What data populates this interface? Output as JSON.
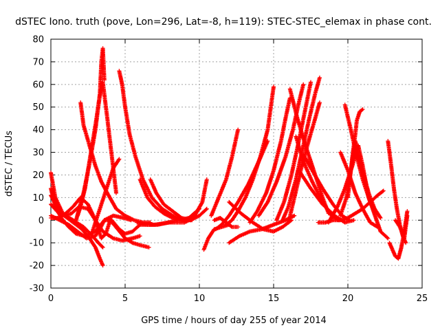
{
  "chart_data": {
    "type": "scatter",
    "title": "dSTEC Iono. truth (pove, Lon=296, Lat=-8, h=119): STEC-STEC_elemax in phase cont.",
    "xlabel": "GPS time / hours of day 255 of year 2014",
    "ylabel": "dSTEC  / TECUs",
    "xlim": [
      0,
      25
    ],
    "ylim": [
      -30,
      80
    ],
    "xticks": [
      0,
      5,
      10,
      15,
      20,
      25
    ],
    "yticks": [
      -30,
      -20,
      -10,
      0,
      10,
      20,
      30,
      40,
      50,
      60,
      70,
      80
    ],
    "grid": true,
    "marker": "+",
    "color": "#ff0000",
    "series": [
      {
        "x": [
          0.0,
          0.3,
          0.8,
          1.5,
          2.2,
          2.8,
          3.2,
          3.5
        ],
        "y": [
          21,
          10,
          3,
          0,
          -3,
          -7,
          -10,
          -12
        ]
      },
      {
        "x": [
          0.0,
          0.3,
          0.7,
          1.2,
          1.7,
          2.3,
          3.0,
          3.6,
          4.2,
          4.9,
          5.4
        ],
        "y": [
          14,
          6,
          1,
          -3,
          -6,
          -7,
          -5,
          0,
          2,
          1,
          0
        ]
      },
      {
        "x": [
          0.0,
          0.4,
          0.9,
          1.5,
          2.1,
          2.6,
          3.0,
          3.3,
          3.5
        ],
        "y": [
          11,
          6,
          2,
          -1,
          -4,
          -8,
          -12,
          -17,
          -20
        ]
      },
      {
        "x": [
          0.0,
          0.4,
          0.9,
          1.4,
          1.9,
          2.5,
          3.0,
          3.4,
          3.7,
          4.0,
          4.5,
          5.0,
          5.5,
          6.0,
          6.6
        ],
        "y": [
          7,
          4,
          2,
          3,
          6,
          5,
          0,
          -8,
          -6,
          0,
          -4,
          -8,
          -10,
          -11,
          -12
        ]
      },
      {
        "x": [
          0.0,
          0.5,
          1.0,
          1.5,
          2.0,
          2.5,
          3.0,
          3.5,
          4.2,
          4.8,
          5.5,
          6.0
        ],
        "y": [
          1,
          1,
          3,
          6,
          10,
          7,
          0,
          -5,
          -8,
          -9,
          -8,
          -7
        ]
      },
      {
        "x": [
          0.0,
          0.6,
          1.2,
          1.8,
          2.4,
          3.0,
          3.3,
          3.6,
          4.1,
          4.6,
          5.0,
          5.5,
          6.0
        ],
        "y": [
          2,
          0,
          -2,
          -5,
          -8,
          -7,
          -4,
          0,
          0,
          -4,
          -6,
          -5,
          -2
        ]
      },
      {
        "x": [
          1.7,
          1.9,
          2.2,
          2.6,
          3.0,
          3.3,
          3.4,
          3.5,
          3.6
        ],
        "y": [
          0,
          5,
          12,
          25,
          40,
          56,
          70,
          76,
          62
        ]
      },
      {
        "x": [
          1.8,
          2.0,
          2.3,
          2.6,
          3.0,
          3.3,
          3.5,
          3.8,
          4.4
        ],
        "y": [
          2,
          6,
          14,
          26,
          42,
          55,
          61,
          45,
          12
        ]
      },
      {
        "x": [
          2.0,
          2.2,
          2.6,
          3.0,
          3.4,
          3.8,
          4.4,
          5.0,
          5.6,
          6.2,
          6.7
        ],
        "y": [
          52,
          42,
          33,
          24,
          17,
          12,
          5,
          2,
          0,
          -1,
          -1
        ]
      },
      {
        "x": [
          2.8,
          3.2,
          3.7,
          4.2,
          4.6
        ],
        "y": [
          -5,
          3,
          13,
          23,
          27
        ]
      },
      {
        "x": [
          4.6,
          4.8,
          5.0,
          5.3,
          5.7,
          6.2,
          6.8,
          7.5,
          8.2,
          8.9,
          9.5
        ],
        "y": [
          66,
          60,
          50,
          38,
          28,
          18,
          10,
          5,
          2,
          0,
          0
        ]
      },
      {
        "x": [
          6.0,
          6.5,
          7.0,
          7.6,
          8.2,
          8.9,
          9.5
        ],
        "y": [
          18,
          10,
          6,
          3,
          1,
          0,
          1
        ]
      },
      {
        "x": [
          6.7,
          7.1,
          7.6,
          8.2,
          8.8,
          9.4,
          10.0,
          10.5
        ],
        "y": [
          18,
          12,
          7,
          4,
          1,
          0,
          2,
          5
        ]
      },
      {
        "x": [
          5.8,
          6.5,
          7.2,
          7.9,
          8.6,
          9.3,
          10.0
        ],
        "y": [
          -1,
          -2,
          -2,
          -1,
          0,
          1,
          5
        ]
      },
      {
        "x": [
          6.0,
          7.0,
          8.0,
          9.0,
          9.6,
          10.2,
          10.5
        ],
        "y": [
          -2,
          -2,
          -1,
          -1,
          1,
          8,
          18
        ]
      },
      {
        "x": [
          10.3,
          10.6,
          11.0,
          11.5,
          12.0
        ],
        "y": [
          -13,
          -8,
          -4,
          -3,
          -2
        ]
      },
      {
        "x": [
          11.0,
          11.4,
          11.8,
          12.2,
          12.6
        ],
        "y": [
          0,
          1,
          -1,
          -3,
          -3
        ]
      },
      {
        "x": [
          11.1,
          11.5,
          12.0,
          12.6,
          13.3,
          14.0,
          14.6
        ],
        "y": [
          -4,
          -2,
          2,
          8,
          16,
          26,
          35
        ]
      },
      {
        "x": [
          11.8,
          12.2,
          12.6,
          13.1,
          13.6,
          14.1,
          14.6,
          15.0
        ],
        "y": [
          -2,
          0,
          4,
          10,
          18,
          28,
          40,
          59
        ]
      },
      {
        "x": [
          10.8,
          11.3,
          11.8,
          12.2,
          12.6
        ],
        "y": [
          2,
          10,
          18,
          28,
          40
        ]
      },
      {
        "x": [
          12.0,
          12.7,
          13.4,
          14.2,
          15.0,
          15.8,
          16.4
        ],
        "y": [
          -10,
          -7,
          -5,
          -4,
          -2,
          0,
          2
        ]
      },
      {
        "x": [
          12.0,
          12.8,
          13.6,
          14.3,
          15.0,
          15.6,
          16.2
        ],
        "y": [
          8,
          3,
          -1,
          -4,
          -5,
          -3,
          0
        ]
      },
      {
        "x": [
          13.4,
          13.9,
          14.5,
          15.0,
          15.5,
          15.8,
          16.1
        ],
        "y": [
          -1,
          4,
          12,
          22,
          35,
          45,
          54
        ]
      },
      {
        "x": [
          14.0,
          14.6,
          15.2,
          15.8,
          16.3,
          16.7,
          17.0
        ],
        "y": [
          2,
          8,
          17,
          28,
          40,
          52,
          60
        ]
      },
      {
        "x": [
          15.2,
          15.7,
          16.2,
          16.7,
          17.1,
          17.5
        ],
        "y": [
          0,
          8,
          20,
          35,
          48,
          61
        ]
      },
      {
        "x": [
          15.6,
          16.0,
          16.5,
          17.0,
          17.4,
          17.8,
          18.1
        ],
        "y": [
          0,
          6,
          18,
          33,
          45,
          56,
          63
        ]
      },
      {
        "x": [
          16.0,
          16.4,
          16.9,
          17.4,
          17.8,
          18.1
        ],
        "y": [
          -1,
          10,
          24,
          36,
          45,
          52
        ]
      },
      {
        "x": [
          16.1,
          16.6,
          17.2,
          17.8,
          18.3,
          18.7
        ],
        "y": [
          58,
          45,
          32,
          20,
          10,
          3
        ]
      },
      {
        "x": [
          16.5,
          17.0,
          17.6,
          18.3,
          18.9,
          19.4
        ],
        "y": [
          37,
          26,
          17,
          8,
          2,
          0
        ]
      },
      {
        "x": [
          17.0,
          17.6,
          18.3,
          19.0,
          19.6,
          20.1
        ],
        "y": [
          29,
          22,
          14,
          7,
          2,
          0
        ]
      },
      {
        "x": [
          16.8,
          17.5,
          18.3,
          19.1,
          19.8,
          20.4
        ],
        "y": [
          21,
          14,
          7,
          2,
          -1,
          0
        ]
      },
      {
        "x": [
          18.7,
          19.3,
          19.8,
          20.3,
          20.7,
          21.0,
          21.4,
          22.2,
          22.7
        ],
        "y": [
          -1,
          6,
          14,
          24,
          33,
          24,
          10,
          -5,
          -8
        ]
      },
      {
        "x": [
          19.5,
          19.9,
          20.2,
          20.5,
          20.9,
          21.4,
          21.8,
          22.2
        ],
        "y": [
          2,
          10,
          22,
          35,
          24,
          12,
          5,
          1
        ]
      },
      {
        "x": [
          19.8,
          20.2,
          20.6,
          21.0,
          21.5,
          22.0
        ],
        "y": [
          51,
          40,
          28,
          18,
          8,
          3
        ]
      },
      {
        "x": [
          20.0,
          20.3,
          20.5,
          20.6,
          20.8,
          21.0
        ],
        "y": [
          10,
          28,
          38,
          44,
          48,
          49
        ]
      },
      {
        "x": [
          18.0,
          18.5,
          19.0,
          19.5,
          20.0,
          20.5,
          21.0,
          21.5,
          22.0,
          22.4
        ],
        "y": [
          -1,
          -1,
          0,
          0,
          1,
          3,
          5,
          8,
          11,
          13
        ]
      },
      {
        "x": [
          19.5,
          20.0,
          20.5,
          21.0,
          21.5,
          22.0
        ],
        "y": [
          30,
          22,
          12,
          5,
          -1,
          -3
        ]
      },
      {
        "x": [
          22.7,
          22.9,
          23.1,
          23.3,
          23.5,
          23.7,
          23.9
        ],
        "y": [
          35,
          25,
          14,
          5,
          -2,
          -7,
          -10
        ]
      },
      {
        "x": [
          22.8,
          23.0,
          23.2,
          23.4,
          23.6,
          23.8,
          24.0
        ],
        "y": [
          -10,
          -13,
          -16,
          -17,
          -12,
          -5,
          4
        ]
      },
      {
        "x": [
          23.2,
          23.5,
          23.8,
          24.0
        ],
        "y": [
          0,
          -3,
          -8,
          2
        ]
      }
    ]
  }
}
